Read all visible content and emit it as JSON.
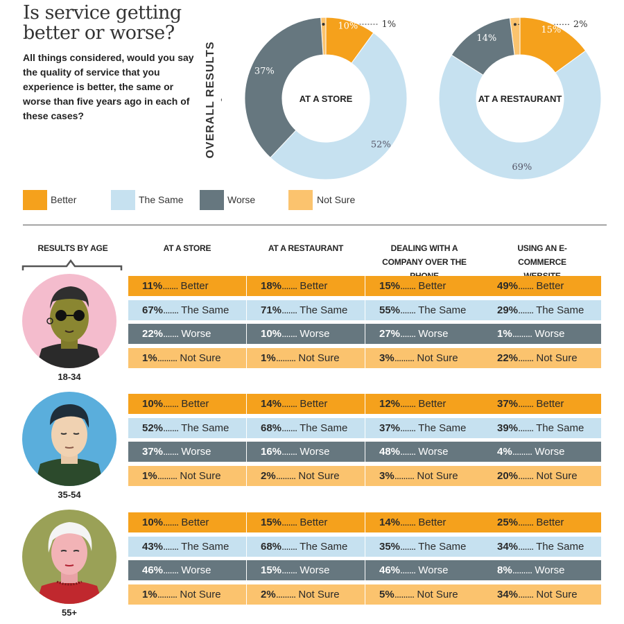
{
  "title": "Is service getting better or worse?",
  "question": "All things considered, would you say the quality of service that you experience is better, the same or worse than five years ago in each of these cases?",
  "overall_label": "OVERALL RESULTS",
  "legend": [
    {
      "label": "Better",
      "color": "#f5a11c"
    },
    {
      "label": "The Same",
      "color": "#c6e1f0"
    },
    {
      "label": "Worse",
      "color": "#66777f"
    },
    {
      "label": "Not Sure",
      "color": "#fbc36e"
    }
  ],
  "age_header": "RESULTS BY AGE",
  "columns": [
    "AT A STORE",
    "AT A RESTAURANT",
    "DEALING WITH A COMPANY OVER THE PHONE",
    "USING AN E-COMMERCE WEBSITE"
  ],
  "chart_data": [
    {
      "type": "pie",
      "title": "AT A STORE",
      "categories": [
        "Better",
        "The Same",
        "Worse",
        "Not Sure"
      ],
      "values": [
        10,
        52,
        37,
        1
      ],
      "labels": [
        "10%",
        "52%",
        "37%",
        "1%"
      ]
    },
    {
      "type": "pie",
      "title": "AT A RESTAURANT",
      "categories": [
        "Better",
        "The Same",
        "Worse",
        "Not Sure"
      ],
      "values": [
        15,
        69,
        14,
        2
      ],
      "labels": [
        "15%",
        "69%",
        "14%",
        "2%"
      ]
    },
    {
      "type": "table",
      "title": "RESULTS BY AGE",
      "row_groups": [
        "18-34",
        "35-54",
        "55+"
      ],
      "categories": [
        "Better",
        "The Same",
        "Worse",
        "Not Sure"
      ],
      "columns": [
        "AT A STORE",
        "AT A RESTAURANT",
        "DEALING WITH A COMPANY OVER THE PHONE",
        "USING AN E-COMMERCE WEBSITE"
      ],
      "values": [
        [
          [
            11,
            67,
            22,
            1
          ],
          [
            18,
            71,
            10,
            1
          ],
          [
            15,
            55,
            27,
            3
          ],
          [
            49,
            29,
            1,
            22
          ]
        ],
        [
          [
            10,
            52,
            37,
            1
          ],
          [
            14,
            68,
            16,
            2
          ],
          [
            12,
            37,
            48,
            3
          ],
          [
            37,
            39,
            4,
            20
          ]
        ],
        [
          [
            10,
            43,
            46,
            1
          ],
          [
            15,
            68,
            15,
            2
          ],
          [
            14,
            35,
            46,
            5
          ],
          [
            25,
            34,
            8,
            34
          ]
        ]
      ]
    }
  ]
}
